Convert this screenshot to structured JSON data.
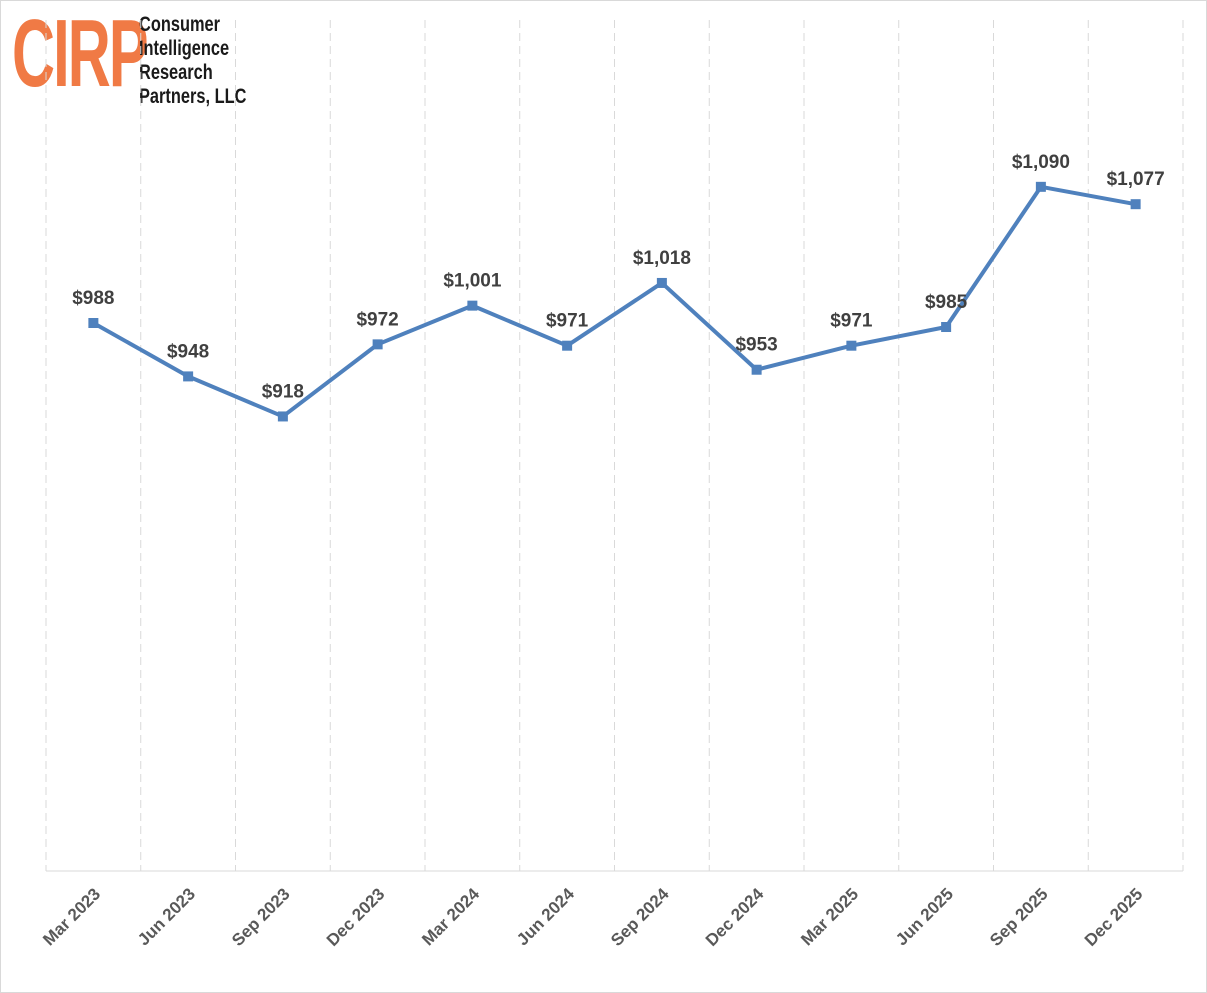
{
  "logo": {
    "mark": "CIRP",
    "lines": [
      "Consumer",
      "Intelligence",
      "Research",
      "Partners, LLC"
    ]
  },
  "chart_data": {
    "type": "line",
    "categories": [
      "Mar 2023",
      "Jun 2023",
      "Sep 2023",
      "Dec 2023",
      "Mar 2024",
      "Jun 2024",
      "Sep 2024",
      "Dec 2024",
      "Mar 2025",
      "Jun 2025",
      "Sep 2025",
      "Dec 2025"
    ],
    "series": [
      {
        "values": [
          988,
          948,
          918,
          972,
          1001,
          971,
          1018,
          953,
          971,
          985,
          1090,
          1077
        ],
        "labels": [
          "$988",
          "$948",
          "$918",
          "$972",
          "$1,001",
          "$971",
          "$1,018",
          "$953",
          "$971",
          "$985",
          "$1,090",
          "$1,077"
        ],
        "color": "#4f81bd"
      }
    ],
    "title": "",
    "xlabel": "",
    "ylabel": "",
    "ylim": [
      600,
      1200
    ],
    "grid": "vertical dashed",
    "legend": "none"
  }
}
